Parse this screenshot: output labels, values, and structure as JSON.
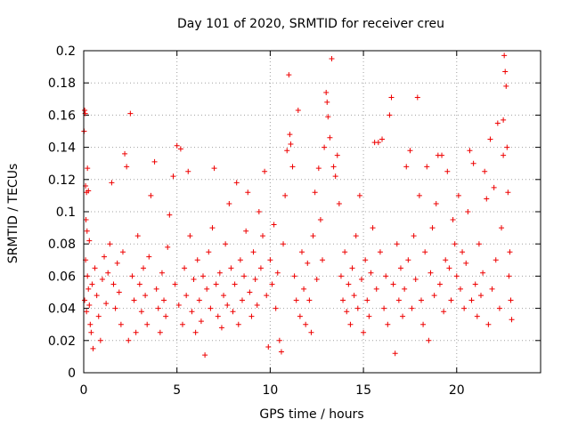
{
  "chart_data": {
    "type": "scatter",
    "title": "Day 101 of 2020, SRMTID for receiver creu",
    "xlabel": "GPS time / hours",
    "ylabel": "SRMTID / TECUs",
    "xlim": [
      0,
      24.5
    ],
    "ylim": [
      0,
      0.2
    ],
    "xticks": [
      0,
      5,
      10,
      15,
      20
    ],
    "xtick_labels": [
      "0",
      "5",
      "10",
      "15",
      "20"
    ],
    "yticks": [
      0,
      0.02,
      0.04,
      0.06,
      0.08,
      0.1,
      0.12,
      0.14,
      0.16,
      0.18,
      0.2
    ],
    "ytick_labels": [
      "0",
      "0.02",
      "0.04",
      "0.06",
      "0.08",
      "0.1",
      "0.12",
      "0.14",
      "0.16",
      "0.18",
      "0.2"
    ],
    "grid": true,
    "marker": "+",
    "color": "#ee0000",
    "series": [
      {
        "name": "SRMTID",
        "points": [
          [
            0.02,
            0.15
          ],
          [
            0.05,
            0.163
          ],
          [
            0.08,
            0.161
          ],
          [
            0.1,
            0.116
          ],
          [
            0.15,
            0.112
          ],
          [
            0.2,
            0.127
          ],
          [
            0.25,
            0.113
          ],
          [
            0.12,
            0.095
          ],
          [
            0.18,
            0.088
          ],
          [
            0.3,
            0.082
          ],
          [
            0.1,
            0.07
          ],
          [
            0.05,
            0.045
          ],
          [
            0.15,
            0.038
          ],
          [
            0.2,
            0.06
          ],
          [
            0.25,
            0.052
          ],
          [
            0.3,
            0.042
          ],
          [
            0.35,
            0.03
          ],
          [
            0.4,
            0.025
          ],
          [
            0.5,
            0.015
          ],
          [
            0.45,
            0.055
          ],
          [
            0.6,
            0.065
          ],
          [
            0.7,
            0.048
          ],
          [
            0.8,
            0.035
          ],
          [
            0.9,
            0.02
          ],
          [
            1.0,
            0.058
          ],
          [
            1.1,
            0.072
          ],
          [
            1.2,
            0.043
          ],
          [
            1.3,
            0.062
          ],
          [
            1.4,
            0.08
          ],
          [
            1.5,
            0.118
          ],
          [
            1.6,
            0.055
          ],
          [
            1.7,
            0.04
          ],
          [
            1.8,
            0.068
          ],
          [
            1.9,
            0.05
          ],
          [
            2.0,
            0.03
          ],
          [
            2.1,
            0.075
          ],
          [
            2.2,
            0.136
          ],
          [
            2.3,
            0.128
          ],
          [
            2.4,
            0.02
          ],
          [
            2.5,
            0.161
          ],
          [
            2.6,
            0.06
          ],
          [
            2.7,
            0.045
          ],
          [
            2.8,
            0.025
          ],
          [
            2.9,
            0.085
          ],
          [
            3.0,
            0.055
          ],
          [
            3.1,
            0.038
          ],
          [
            3.2,
            0.065
          ],
          [
            3.3,
            0.048
          ],
          [
            3.4,
            0.03
          ],
          [
            3.5,
            0.072
          ],
          [
            3.6,
            0.11
          ],
          [
            3.8,
            0.131
          ],
          [
            3.9,
            0.052
          ],
          [
            4.0,
            0.04
          ],
          [
            4.1,
            0.025
          ],
          [
            4.2,
            0.062
          ],
          [
            4.3,
            0.045
          ],
          [
            4.4,
            0.035
          ],
          [
            4.5,
            0.078
          ],
          [
            4.6,
            0.098
          ],
          [
            4.8,
            0.122
          ],
          [
            4.9,
            0.055
          ],
          [
            5.0,
            0.141
          ],
          [
            5.1,
            0.042
          ],
          [
            5.2,
            0.139
          ],
          [
            5.3,
            0.03
          ],
          [
            5.4,
            0.065
          ],
          [
            5.5,
            0.048
          ],
          [
            5.6,
            0.125
          ],
          [
            5.7,
            0.085
          ],
          [
            5.8,
            0.038
          ],
          [
            5.9,
            0.058
          ],
          [
            6.0,
            0.025
          ],
          [
            6.1,
            0.07
          ],
          [
            6.2,
            0.045
          ],
          [
            6.3,
            0.032
          ],
          [
            6.4,
            0.06
          ],
          [
            6.5,
            0.011
          ],
          [
            6.6,
            0.052
          ],
          [
            6.7,
            0.075
          ],
          [
            6.8,
            0.04
          ],
          [
            6.9,
            0.09
          ],
          [
            7.0,
            0.127
          ],
          [
            7.1,
            0.055
          ],
          [
            7.2,
            0.035
          ],
          [
            7.3,
            0.062
          ],
          [
            7.4,
            0.028
          ],
          [
            7.5,
            0.048
          ],
          [
            7.6,
            0.08
          ],
          [
            7.7,
            0.042
          ],
          [
            7.8,
            0.105
          ],
          [
            7.9,
            0.065
          ],
          [
            8.0,
            0.038
          ],
          [
            8.1,
            0.055
          ],
          [
            8.2,
            0.118
          ],
          [
            8.3,
            0.03
          ],
          [
            8.4,
            0.07
          ],
          [
            8.5,
            0.045
          ],
          [
            8.6,
            0.06
          ],
          [
            8.7,
            0.088
          ],
          [
            8.8,
            0.112
          ],
          [
            8.9,
            0.05
          ],
          [
            9.0,
            0.035
          ],
          [
            9.1,
            0.075
          ],
          [
            9.2,
            0.058
          ],
          [
            9.3,
            0.042
          ],
          [
            9.4,
            0.1
          ],
          [
            9.5,
            0.065
          ],
          [
            9.6,
            0.085
          ],
          [
            9.7,
            0.125
          ],
          [
            9.8,
            0.048
          ],
          [
            9.9,
            0.016
          ],
          [
            10.0,
            0.07
          ],
          [
            10.1,
            0.055
          ],
          [
            10.2,
            0.092
          ],
          [
            10.3,
            0.04
          ],
          [
            10.4,
            0.062
          ],
          [
            10.5,
            0.02
          ],
          [
            10.6,
            0.013
          ],
          [
            10.7,
            0.08
          ],
          [
            10.8,
            0.11
          ],
          [
            10.9,
            0.138
          ],
          [
            11.0,
            0.185
          ],
          [
            11.05,
            0.148
          ],
          [
            11.1,
            0.142
          ],
          [
            11.2,
            0.128
          ],
          [
            11.3,
            0.06
          ],
          [
            11.4,
            0.045
          ],
          [
            11.5,
            0.163
          ],
          [
            11.6,
            0.035
          ],
          [
            11.7,
            0.075
          ],
          [
            11.8,
            0.052
          ],
          [
            11.9,
            0.03
          ],
          [
            12.0,
            0.068
          ],
          [
            12.1,
            0.045
          ],
          [
            12.2,
            0.025
          ],
          [
            12.3,
            0.085
          ],
          [
            12.4,
            0.112
          ],
          [
            12.5,
            0.058
          ],
          [
            12.6,
            0.127
          ],
          [
            12.7,
            0.095
          ],
          [
            12.8,
            0.07
          ],
          [
            12.9,
            0.14
          ],
          [
            13.0,
            0.174
          ],
          [
            13.05,
            0.168
          ],
          [
            13.1,
            0.159
          ],
          [
            13.2,
            0.146
          ],
          [
            13.3,
            0.195
          ],
          [
            13.4,
            0.128
          ],
          [
            13.5,
            0.122
          ],
          [
            13.6,
            0.135
          ],
          [
            13.7,
            0.105
          ],
          [
            13.8,
            0.06
          ],
          [
            13.9,
            0.045
          ],
          [
            14.0,
            0.075
          ],
          [
            14.1,
            0.038
          ],
          [
            14.2,
            0.055
          ],
          [
            14.3,
            0.03
          ],
          [
            14.4,
            0.065
          ],
          [
            14.5,
            0.048
          ],
          [
            14.6,
            0.085
          ],
          [
            14.7,
            0.04
          ],
          [
            14.8,
            0.11
          ],
          [
            14.9,
            0.058
          ],
          [
            15.0,
            0.025
          ],
          [
            15.1,
            0.07
          ],
          [
            15.2,
            0.045
          ],
          [
            15.3,
            0.035
          ],
          [
            15.4,
            0.062
          ],
          [
            15.5,
            0.09
          ],
          [
            15.6,
            0.143
          ],
          [
            15.7,
            0.052
          ],
          [
            15.8,
            0.143
          ],
          [
            15.9,
            0.075
          ],
          [
            16.0,
            0.145
          ],
          [
            16.1,
            0.04
          ],
          [
            16.2,
            0.06
          ],
          [
            16.3,
            0.03
          ],
          [
            16.4,
            0.16
          ],
          [
            16.5,
            0.171
          ],
          [
            16.6,
            0.055
          ],
          [
            16.7,
            0.012
          ],
          [
            16.8,
            0.08
          ],
          [
            16.9,
            0.045
          ],
          [
            17.0,
            0.065
          ],
          [
            17.1,
            0.035
          ],
          [
            17.2,
            0.052
          ],
          [
            17.3,
            0.128
          ],
          [
            17.4,
            0.07
          ],
          [
            17.5,
            0.138
          ],
          [
            17.6,
            0.04
          ],
          [
            17.7,
            0.085
          ],
          [
            17.8,
            0.058
          ],
          [
            17.9,
            0.171
          ],
          [
            18.0,
            0.11
          ],
          [
            18.1,
            0.045
          ],
          [
            18.2,
            0.03
          ],
          [
            18.3,
            0.075
          ],
          [
            18.4,
            0.128
          ],
          [
            18.5,
            0.02
          ],
          [
            18.6,
            0.062
          ],
          [
            18.7,
            0.09
          ],
          [
            18.8,
            0.048
          ],
          [
            18.9,
            0.105
          ],
          [
            19.0,
            0.135
          ],
          [
            19.1,
            0.055
          ],
          [
            19.2,
            0.135
          ],
          [
            19.3,
            0.038
          ],
          [
            19.4,
            0.07
          ],
          [
            19.5,
            0.125
          ],
          [
            19.6,
            0.065
          ],
          [
            19.7,
            0.045
          ],
          [
            19.8,
            0.095
          ],
          [
            19.9,
            0.08
          ],
          [
            20.0,
            0.06
          ],
          [
            20.1,
            0.11
          ],
          [
            20.2,
            0.052
          ],
          [
            20.3,
            0.075
          ],
          [
            20.4,
            0.04
          ],
          [
            20.5,
            0.068
          ],
          [
            20.6,
            0.1
          ],
          [
            20.7,
            0.138
          ],
          [
            20.8,
            0.045
          ],
          [
            20.9,
            0.13
          ],
          [
            21.0,
            0.055
          ],
          [
            21.1,
            0.035
          ],
          [
            21.2,
            0.08
          ],
          [
            21.3,
            0.048
          ],
          [
            21.4,
            0.062
          ],
          [
            21.5,
            0.125
          ],
          [
            21.6,
            0.108
          ],
          [
            21.7,
            0.03
          ],
          [
            21.8,
            0.145
          ],
          [
            21.9,
            0.052
          ],
          [
            22.0,
            0.115
          ],
          [
            22.1,
            0.07
          ],
          [
            22.2,
            0.155
          ],
          [
            22.3,
            0.04
          ],
          [
            22.4,
            0.09
          ],
          [
            22.5,
            0.135
          ],
          [
            22.55,
            0.197
          ],
          [
            22.6,
            0.187
          ],
          [
            22.65,
            0.178
          ],
          [
            22.7,
            0.14
          ],
          [
            22.75,
            0.112
          ],
          [
            22.8,
            0.06
          ],
          [
            22.85,
            0.075
          ],
          [
            22.9,
            0.045
          ],
          [
            22.95,
            0.033
          ],
          [
            22.5,
            0.157
          ]
        ]
      }
    ]
  }
}
